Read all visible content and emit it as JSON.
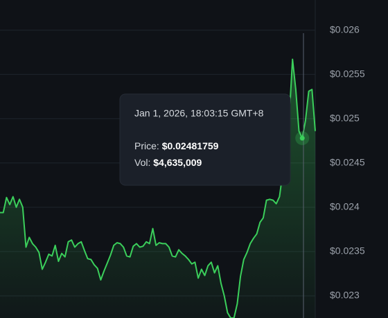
{
  "chart_data": {
    "type": "line",
    "series": [
      {
        "color": "#3bcf5b",
        "values": [
          0.02394,
          0.02394,
          0.02411,
          0.02403,
          0.02412,
          0.024,
          0.02409,
          0.024,
          0.02355,
          0.02366,
          0.02359,
          0.02355,
          0.02349,
          0.0233,
          0.02338,
          0.02347,
          0.02345,
          0.02357,
          0.02339,
          0.02348,
          0.02344,
          0.02361,
          0.02363,
          0.02355,
          0.02359,
          0.02361,
          0.02351,
          0.02342,
          0.02341,
          0.02335,
          0.02331,
          0.02318,
          0.02328,
          0.02337,
          0.02346,
          0.02357,
          0.0236,
          0.02359,
          0.02355,
          0.02345,
          0.02344,
          0.02356,
          0.02359,
          0.02355,
          0.02356,
          0.02361,
          0.02359,
          0.02376,
          0.02357,
          0.0236,
          0.02359,
          0.02359,
          0.02355,
          0.02345,
          0.02344,
          0.02352,
          0.02348,
          0.02345,
          0.02341,
          0.02336,
          0.02338,
          0.0232,
          0.0233,
          0.02323,
          0.02334,
          0.02338,
          0.02326,
          0.02334,
          0.02314,
          0.023,
          0.02281,
          0.02275,
          0.02275,
          0.02291,
          0.02322,
          0.02341,
          0.02349,
          0.02359,
          0.02365,
          0.0237,
          0.02383,
          0.02388,
          0.02408,
          0.02409,
          0.02408,
          0.02404,
          0.02412,
          0.02439,
          0.02459,
          0.02502,
          0.02567,
          0.02533,
          0.02486,
          0.02478,
          0.02498,
          0.02531,
          0.02533,
          0.02486
        ]
      }
    ],
    "ylim": [
      0.02275,
      0.02634
    ],
    "yticks": [
      {
        "value": 0.026,
        "label": "$0.026"
      },
      {
        "value": 0.0255,
        "label": "$0.0255"
      },
      {
        "value": 0.025,
        "label": "$0.025"
      },
      {
        "value": 0.0245,
        "label": "$0.0245"
      },
      {
        "value": 0.024,
        "label": "$0.024"
      },
      {
        "value": 0.0235,
        "label": "$0.0235"
      },
      {
        "value": 0.023,
        "label": "$0.023"
      }
    ],
    "grid": true,
    "tooltip": {
      "date": "Jan 1, 2026, 18:03:15 GMT+8",
      "price_key": "Price:",
      "price": "$0.02481759",
      "vol_key": "Vol:",
      "vol": "$4,635,009"
    }
  }
}
